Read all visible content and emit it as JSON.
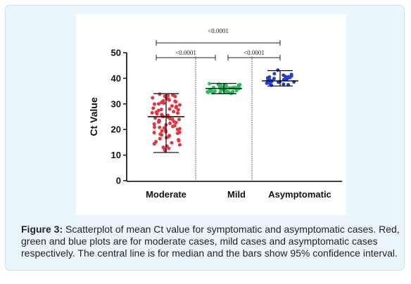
{
  "chart_data": {
    "type": "scatter",
    "ylabel": "Ct Value",
    "ylim": [
      0,
      50
    ],
    "yticks": [
      "0",
      "10",
      "20",
      "30",
      "40",
      "50"
    ],
    "categories": [
      "Moderate",
      "Mild",
      "Asymptomatic"
    ],
    "series": [
      {
        "category": "Moderate",
        "color": "#e8323c",
        "median": 25,
        "ci": [
          11,
          34
        ],
        "values": [
          33.5,
          33.2,
          33.0,
          33.8,
          32.9,
          33.4,
          32.6,
          33.1,
          32.0,
          32.4,
          31.8,
          31.5,
          31.2,
          30.8,
          30.6,
          30.3,
          30.0,
          29.6,
          29.2,
          29.0,
          28.6,
          28.3,
          28.0,
          27.7,
          27.4,
          27.0,
          26.7,
          26.4,
          26.1,
          25.8,
          25.5,
          25.2,
          25.0,
          24.8,
          24.5,
          24.2,
          23.9,
          23.6,
          23.3,
          23.0,
          22.7,
          22.4,
          22.1,
          21.8,
          21.5,
          21.2,
          20.9,
          20.6,
          20.3,
          20.0,
          19.7,
          19.4,
          19.1,
          18.8,
          18.5,
          18.2,
          17.9,
          17.6,
          17.2,
          16.8,
          16.4,
          16.0,
          15.6,
          15.2,
          14.8,
          14.4,
          14.0,
          13.5,
          13.0,
          12.6,
          12.2,
          11.8,
          26.5,
          24.0,
          27.8,
          22.9,
          31.0,
          18.9,
          20.8,
          29.9
        ]
      },
      {
        "category": "Mild",
        "color": "#22c25a",
        "median": 36,
        "ci": [
          34,
          38
        ],
        "values": [
          37.9,
          37.7,
          37.6,
          37.4,
          37.3,
          37.1,
          37.0,
          36.9,
          36.8,
          36.7,
          36.6,
          36.5,
          36.4,
          36.3,
          36.2,
          36.1,
          36.0,
          35.9,
          35.8,
          35.7,
          35.6,
          35.5,
          35.4,
          35.3,
          35.2,
          35.1,
          35.0,
          34.9,
          34.8,
          34.7,
          34.6,
          34.5,
          34.4,
          34.3,
          34.2,
          34.1,
          36.2,
          35.8,
          36.6,
          35.3,
          37.2,
          34.9,
          36.0,
          35.5,
          36.4,
          35.0,
          37.5,
          34.6
        ]
      },
      {
        "category": "Asymptomatic",
        "color": "#1f3ed6",
        "median": 39,
        "ci": [
          37,
          43
        ],
        "values": [
          43.2,
          41.8,
          41.5,
          41.2,
          40.9,
          40.7,
          40.5,
          40.3,
          40.1,
          39.9,
          39.7,
          39.5,
          39.3,
          39.1,
          38.9,
          38.7,
          38.5,
          38.3,
          38.1,
          37.9,
          37.7,
          37.5,
          37.3,
          39.0,
          40.0,
          38.6,
          39.4,
          40.6
        ]
      }
    ],
    "comparisons": [
      {
        "pair": [
          "Moderate",
          "Mild"
        ],
        "label": "<0.0001"
      },
      {
        "pair": [
          "Mild",
          "Asymptomatic"
        ],
        "label": "<0.0001"
      },
      {
        "pair": [
          "Moderate",
          "Asymptomatic"
        ],
        "label": "<0.0001"
      }
    ]
  },
  "caption": {
    "label": "Figure 3:",
    "text": " Scatterplot of mean Ct value for symptomatic and asymptomatic cases. Red, green and blue plots are for moderate cases, mild cases and asymptomatic cases respectively. The central line is for median and the bars show 95% confidence interval."
  }
}
